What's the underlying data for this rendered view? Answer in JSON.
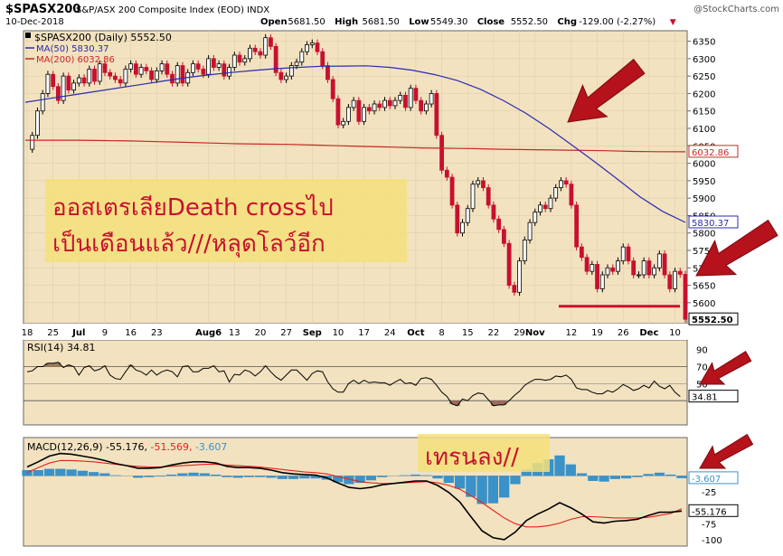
{
  "header": {
    "symbol": "$SPASX200",
    "description": "S&P/ASX 200 Composite Index (EOD)  INDX",
    "watermark": "@StockCharts.com",
    "date": "10-Dec-2018",
    "ohlc": [
      {
        "label": "Open",
        "value": "5681.50"
      },
      {
        "label": "High",
        "value": "5681.50"
      },
      {
        "label": "Low",
        "value": "5549.30"
      },
      {
        "label": "Close",
        "value": "5552.50"
      },
      {
        "label": "Chg",
        "value": "-129.00 (-2.27%)"
      }
    ],
    "chg_marker": "▼"
  },
  "annotations": {
    "price_note_line1": "ออสเตรเลียDeath crossไป",
    "price_note_line2": "เป็นเดือนแล้ว///หลุดโลว์อีก",
    "macd_note": "เทรนลง//"
  },
  "colors": {
    "panel_bg": "#f2e2c0",
    "axis_bg": "#ffffff",
    "up_candle": "#ffffff",
    "down_candle": "#c8102e",
    "ma50": "#2b2bb0",
    "ma200": "#c82828",
    "annotation_text": "#c8102e",
    "annotation_bg": "#f5e07a",
    "arrow": "#b5121b",
    "macd_line": "#000000",
    "signal_line": "#e8201c",
    "histogram": "#3a92c8"
  },
  "chart_data": [
    {
      "type": "candlestick",
      "legend": {
        "main": "$SPASX200 (Daily) 5552.50",
        "ma50": "MA(50) 5830.37",
        "ma200": "MA(200) 6032.86"
      },
      "ylim": [
        5540,
        6380
      ],
      "y_ticks": [
        5600,
        5650,
        5700,
        5750,
        5800,
        5850,
        5900,
        5950,
        6000,
        6050,
        6100,
        6150,
        6200,
        6250,
        6300,
        6350
      ],
      "x_ticks": [
        {
          "label": "18",
          "i": 0
        },
        {
          "label": "25",
          "i": 5
        },
        {
          "label": "Jul",
          "i": 10
        },
        {
          "label": "9",
          "i": 15
        },
        {
          "label": "16",
          "i": 20
        },
        {
          "label": "23",
          "i": 25
        },
        {
          "label": "Aug6",
          "i": 35
        },
        {
          "label": "13",
          "i": 40
        },
        {
          "label": "20",
          "i": 45
        },
        {
          "label": "27",
          "i": 50
        },
        {
          "label": "Sep",
          "i": 55
        },
        {
          "label": "10",
          "i": 60
        },
        {
          "label": "17",
          "i": 65
        },
        {
          "label": "24",
          "i": 70
        },
        {
          "label": "Oct",
          "i": 75
        },
        {
          "label": "8",
          "i": 80
        },
        {
          "label": "15",
          "i": 85
        },
        {
          "label": "22",
          "i": 90
        },
        {
          "label": "29",
          "i": 95
        },
        {
          "label": "Nov",
          "i": 98
        },
        {
          "label": "12",
          "i": 105
        },
        {
          "label": "19",
          "i": 110
        },
        {
          "label": "26",
          "i": 115
        },
        {
          "label": "Dec",
          "i": 120
        },
        {
          "label": "10",
          "i": 125
        }
      ],
      "close": [
        6040,
        6080,
        6150,
        6200,
        6255,
        6220,
        6180,
        6250,
        6210,
        6230,
        6245,
        6230,
        6270,
        6235,
        6285,
        6260,
        6250,
        6240,
        6230,
        6270,
        6285,
        6255,
        6275,
        6265,
        6240,
        6265,
        6285,
        6255,
        6230,
        6280,
        6230,
        6260,
        6285,
        6270,
        6255,
        6300,
        6275,
        6285,
        6250,
        6275,
        6310,
        6290,
        6300,
        6330,
        6320,
        6310,
        6360,
        6335,
        6260,
        6240,
        6250,
        6280,
        6290,
        6320,
        6340,
        6345,
        6320,
        6280,
        6240,
        6185,
        6110,
        6120,
        6160,
        6180,
        6120,
        6160,
        6150,
        6170,
        6160,
        6180,
        6165,
        6180,
        6195,
        6160,
        6215,
        6180,
        6150,
        6170,
        6200,
        6080,
        5980,
        5960,
        5880,
        5800,
        5830,
        5870,
        5940,
        5950,
        5930,
        5880,
        5840,
        5810,
        5770,
        5650,
        5630,
        5720,
        5780,
        5830,
        5860,
        5880,
        5870,
        5900,
        5930,
        5950,
        5940,
        5880,
        5760,
        5730,
        5690,
        5710,
        5640,
        5680,
        5700,
        5690,
        5720,
        5760,
        5720,
        5680,
        5680,
        5720,
        5680,
        5700,
        5740,
        5680,
        5640,
        5690,
        5681.5,
        5552.5
      ],
      "ma50": [
        6175,
        6185,
        6195,
        6205,
        6215,
        6225,
        6235,
        6245,
        6253,
        6260,
        6266,
        6271,
        6275,
        6278,
        6278.5,
        6279.5,
        6275,
        6267,
        6254,
        6237,
        6212,
        6180,
        6143,
        6100,
        6053,
        6005,
        5955,
        5904,
        5862,
        5830.37
      ],
      "ma200": [
        6066,
        6066,
        6066,
        6065,
        6064,
        6062,
        6060,
        6058,
        6056,
        6055,
        6054,
        6052,
        6050,
        6048,
        6046,
        6044,
        6043,
        6042,
        6040,
        6039,
        6038,
        6037,
        6036,
        6034,
        6033,
        6032.86
      ],
      "support_level": 5590
    },
    {
      "type": "line",
      "legend": "RSI(14) 34.81",
      "ylim": [
        0,
        100
      ],
      "y_ticks": [
        50,
        70,
        90
      ],
      "reference_lines": [
        30,
        50,
        70
      ],
      "values": [
        64,
        65,
        70,
        70,
        74,
        74,
        75,
        69,
        72,
        70,
        60,
        69,
        71,
        65,
        67,
        71,
        60,
        56,
        55,
        64,
        72,
        66,
        64,
        60,
        66,
        60,
        64,
        66,
        64,
        58,
        70,
        71,
        64,
        64,
        68,
        68,
        71,
        64,
        65,
        52,
        61,
        60,
        66,
        64,
        59,
        64,
        71,
        64,
        58,
        54,
        60,
        66,
        66,
        60,
        54,
        62,
        65,
        64,
        52,
        44,
        40,
        40,
        50,
        54,
        50,
        54,
        51,
        52,
        51,
        51,
        48,
        52,
        55,
        50,
        51,
        48,
        56,
        57,
        55,
        48,
        40,
        35,
        26,
        24,
        32,
        30,
        36,
        39,
        38,
        31,
        24,
        25,
        25,
        30,
        36,
        41,
        48,
        52,
        55,
        55,
        54,
        55,
        59,
        58,
        60,
        55,
        45,
        43,
        43,
        40,
        38,
        38,
        42,
        40,
        44,
        49,
        46,
        42,
        44,
        48,
        45,
        53,
        47,
        44,
        48,
        40,
        34.81
      ],
      "last_value_label": "34.81"
    },
    {
      "type": "macd",
      "legend": {
        "name": "MACD(12,26,9)",
        "macd": "-55.176",
        "signal": "-51.569",
        "histogram": "-3.607"
      },
      "ylim": [
        -110,
        60
      ],
      "y_ticks": [
        -100,
        -75,
        -25
      ],
      "zero_line": 0,
      "macd": [
        14,
        22,
        31,
        35,
        34,
        31,
        28,
        24,
        19,
        16,
        12,
        12,
        13,
        17,
        20,
        22,
        22,
        20,
        15,
        13,
        13,
        12,
        9,
        5,
        3,
        2,
        1,
        -3,
        -11,
        -18,
        -20,
        -18,
        -14,
        -12,
        -10,
        -8,
        -8,
        -15,
        -26,
        -41,
        -64,
        -86,
        -97,
        -100,
        -88,
        -70,
        -60,
        -52,
        -42,
        -50,
        -60,
        -72,
        -74,
        -71,
        -70,
        -68,
        -62,
        -57,
        -57,
        -55.176
      ],
      "signal": [
        5,
        13,
        20,
        24,
        24,
        23,
        22,
        20,
        18,
        16,
        15,
        14,
        14,
        15,
        16,
        17,
        18,
        18,
        17,
        16,
        15,
        14,
        12,
        10,
        8,
        6,
        5,
        3,
        -1,
        -5,
        -9,
        -11,
        -12,
        -12,
        -11,
        -10,
        -9,
        -11,
        -15,
        -21,
        -31,
        -42,
        -54,
        -66,
        -75,
        -80,
        -80,
        -78,
        -74,
        -68,
        -64,
        -64,
        -65,
        -66,
        -66,
        -66,
        -65,
        -62,
        -59,
        -51.569
      ],
      "histogram": [
        9,
        9,
        11,
        11,
        10,
        8,
        6,
        4,
        1,
        0,
        -3,
        -2,
        -1,
        2,
        4,
        5,
        4,
        2,
        -2,
        -3,
        -2,
        -2,
        -3,
        -5,
        -5,
        -4,
        -4,
        -6,
        -10,
        -13,
        -11,
        -7,
        -2,
        0,
        1,
        2,
        1,
        -4,
        -11,
        -20,
        -33,
        -44,
        -43,
        -34,
        -13,
        10,
        20,
        26,
        32,
        18,
        4,
        -8,
        -9,
        -5,
        -4,
        -2,
        3,
        5,
        2,
        -3.607
      ],
      "value_labels": [
        "-3.607",
        "-55.176"
      ]
    }
  ]
}
